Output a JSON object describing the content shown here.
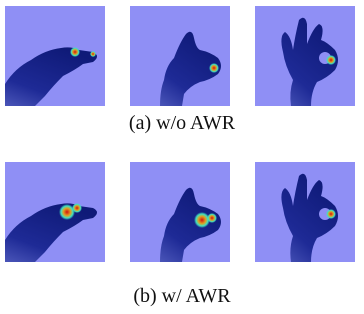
{
  "figure": {
    "rows": [
      {
        "caption": "(a) w/o AWR"
      },
      {
        "caption": "(b) w/ AWR"
      }
    ]
  }
}
